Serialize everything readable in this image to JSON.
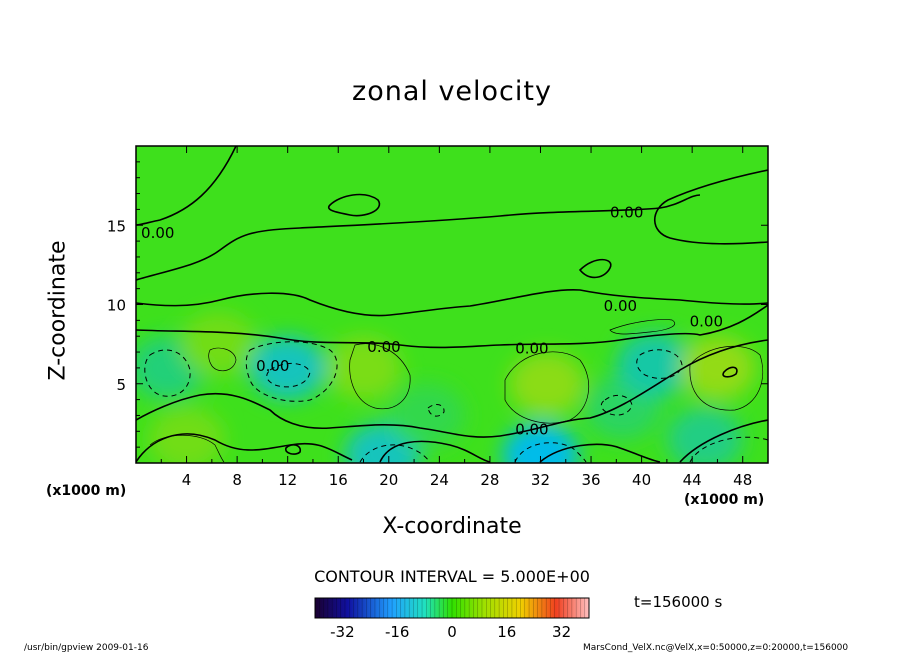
{
  "chart_data": {
    "type": "heatmap",
    "title": "zonal velocity",
    "xlabel": "X-coordinate",
    "ylabel": "Z-coordinate",
    "x_unit": "(x1000 m)",
    "y_unit": "(x1000 m)",
    "xlim": [
      0,
      50
    ],
    "ylim": [
      0,
      20
    ],
    "x_ticks": [
      "4",
      "8",
      "12",
      "16",
      "20",
      "24",
      "28",
      "32",
      "36",
      "40",
      "44",
      "48"
    ],
    "y_ticks": [
      "5",
      "10",
      "15"
    ],
    "contour_labels": [
      "0.00",
      "0.00",
      "0.00",
      "0.00",
      "0.00",
      "0.00",
      "0.00",
      "0.00"
    ],
    "contour_interval_text": "CONTOUR INTERVAL = 5.000E+00",
    "colorbar": {
      "min": -40,
      "max": 40,
      "ticks": [
        "-32",
        "-16",
        "0",
        "16",
        "32"
      ]
    },
    "features": [
      {
        "x": 2.5,
        "z": 6.0,
        "value": -8
      },
      {
        "x": 6.5,
        "z": 7.5,
        "value": 6
      },
      {
        "x": 12.0,
        "z": 6.0,
        "value": -14
      },
      {
        "x": 18.0,
        "z": 6.0,
        "value": 7
      },
      {
        "x": 19.5,
        "z": 0.5,
        "value": -14
      },
      {
        "x": 23.0,
        "z": 3.0,
        "value": -4
      },
      {
        "x": 32.0,
        "z": 0.5,
        "value": -18
      },
      {
        "x": 32.5,
        "z": 5.0,
        "value": 9
      },
      {
        "x": 38.5,
        "z": 3.5,
        "value": -6
      },
      {
        "x": 41.0,
        "z": 6.2,
        "value": -12
      },
      {
        "x": 46.0,
        "z": 6.0,
        "value": 10
      },
      {
        "x": 45.0,
        "z": 1.5,
        "value": -9
      },
      {
        "x": 4.0,
        "z": 1.5,
        "value": 6
      }
    ]
  },
  "time_label": "t=156000  s",
  "footer": {
    "left": "/usr/bin/gpview   2009-01-16",
    "right": "MarsCond_VelX.nc@VelX,x=0:50000,z=0:20000,t=156000"
  }
}
